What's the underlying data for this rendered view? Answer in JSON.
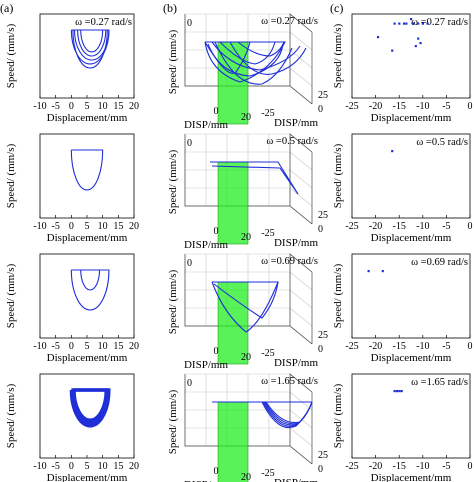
{
  "panel_labels": {
    "a": "(a)",
    "b": "(b)",
    "c": "(c)"
  },
  "omega_labels": [
    "ω =0.27 rad/s",
    "ω =0.5 rad/s",
    "ω =0.69 rad/s",
    "ω =1.65 rad/s"
  ],
  "omega_values": [
    0.27,
    0.5,
    0.69,
    1.65
  ],
  "axes": {
    "a_xlabel": "Displacement/mm",
    "a_ylabel": "Speed/ (mm/s)",
    "a_xticks": [
      "-10",
      "-5",
      "0",
      "5",
      "10",
      "15",
      "20"
    ],
    "b_ylabel": "Speed/ (mm/s)",
    "b_xlabel_left": "DISP/mm",
    "b_xlabel_right": "DISP/mm",
    "b_xticks": [
      "0",
      "20"
    ],
    "b_mid_tick": "-25",
    "b_dticks": [
      "25",
      "0"
    ],
    "c_xlabel": "Displacement/mm",
    "c_ylabel": "Speed/ (mm/s)",
    "c_xticks": [
      "-25",
      "-20",
      "-15",
      "-10",
      "-5",
      "0"
    ]
  },
  "colors": {
    "trace": "#1f2fd8",
    "band": "#22ee22"
  },
  "chart_data": [
    {
      "panel": "a",
      "type": "line",
      "xlabel": "Displacement/mm",
      "ylabel": "Speed/ (mm/s)",
      "xlim": [
        -10,
        20
      ],
      "rows": [
        {
          "omega": 0.27,
          "loops": [
            {
              "x0": 0,
              "x1": 12,
              "depth": 0.85
            },
            {
              "x0": 0.5,
              "x1": 11.5,
              "depth": 0.95
            },
            {
              "x0": 1,
              "x1": 12,
              "depth": 0.75
            },
            {
              "x0": 2,
              "x1": 11,
              "depth": 0.65
            },
            {
              "x0": 3,
              "x1": 10,
              "depth": 0.55
            }
          ]
        },
        {
          "omega": 0.5,
          "loops": [
            {
              "x0": 0,
              "x1": 10,
              "depth": 1.0
            }
          ]
        },
        {
          "omega": 0.69,
          "loops": [
            {
              "x0": 0,
              "x1": 12,
              "depth": 1.0
            },
            {
              "x0": 3,
              "x1": 9,
              "depth": 0.5
            }
          ]
        },
        {
          "omega": 1.65,
          "loops": [
            {
              "x0": 0,
              "x1": 12,
              "depth": 0.9
            },
            {
              "x0": 0.3,
              "x1": 11.7,
              "depth": 0.85
            },
            {
              "x0": 0.6,
              "x1": 11.4,
              "depth": 0.8
            },
            {
              "x0": 0.9,
              "x1": 11.1,
              "depth": 0.75
            }
          ]
        }
      ]
    },
    {
      "panel": "c",
      "type": "scatter",
      "xlabel": "Displacement/mm",
      "ylabel": "Speed/ (mm/s)",
      "xlim": [
        -25,
        0
      ],
      "rows": [
        {
          "omega": 0.27,
          "points": [
            [
              -16,
              0.35
            ],
            [
              -15,
              0.35
            ],
            [
              -14,
              0.35
            ],
            [
              -13.5,
              0.35
            ],
            [
              -12,
              0.35
            ],
            [
              -11,
              0.35
            ],
            [
              -10,
              0.35
            ],
            [
              -9,
              0.35
            ],
            [
              -12.5,
              0.5
            ],
            [
              -19.5,
              -0.1
            ],
            [
              -16.5,
              -0.55
            ],
            [
              -11,
              -0.15
            ],
            [
              -10.5,
              -0.3
            ],
            [
              -11.5,
              -0.4
            ]
          ]
        },
        {
          "omega": 0.5,
          "points": [
            [
              -16.5,
              0.1
            ]
          ]
        },
        {
          "omega": 0.69,
          "points": [
            [
              -21.5,
              0.1
            ],
            [
              -18.5,
              0.1
            ]
          ]
        },
        {
          "omega": 1.65,
          "points": [
            [
              -16,
              0.1
            ],
            [
              -15.5,
              0.1
            ],
            [
              -15,
              0.1
            ],
            [
              -14.5,
              0.1
            ]
          ]
        }
      ]
    }
  ]
}
